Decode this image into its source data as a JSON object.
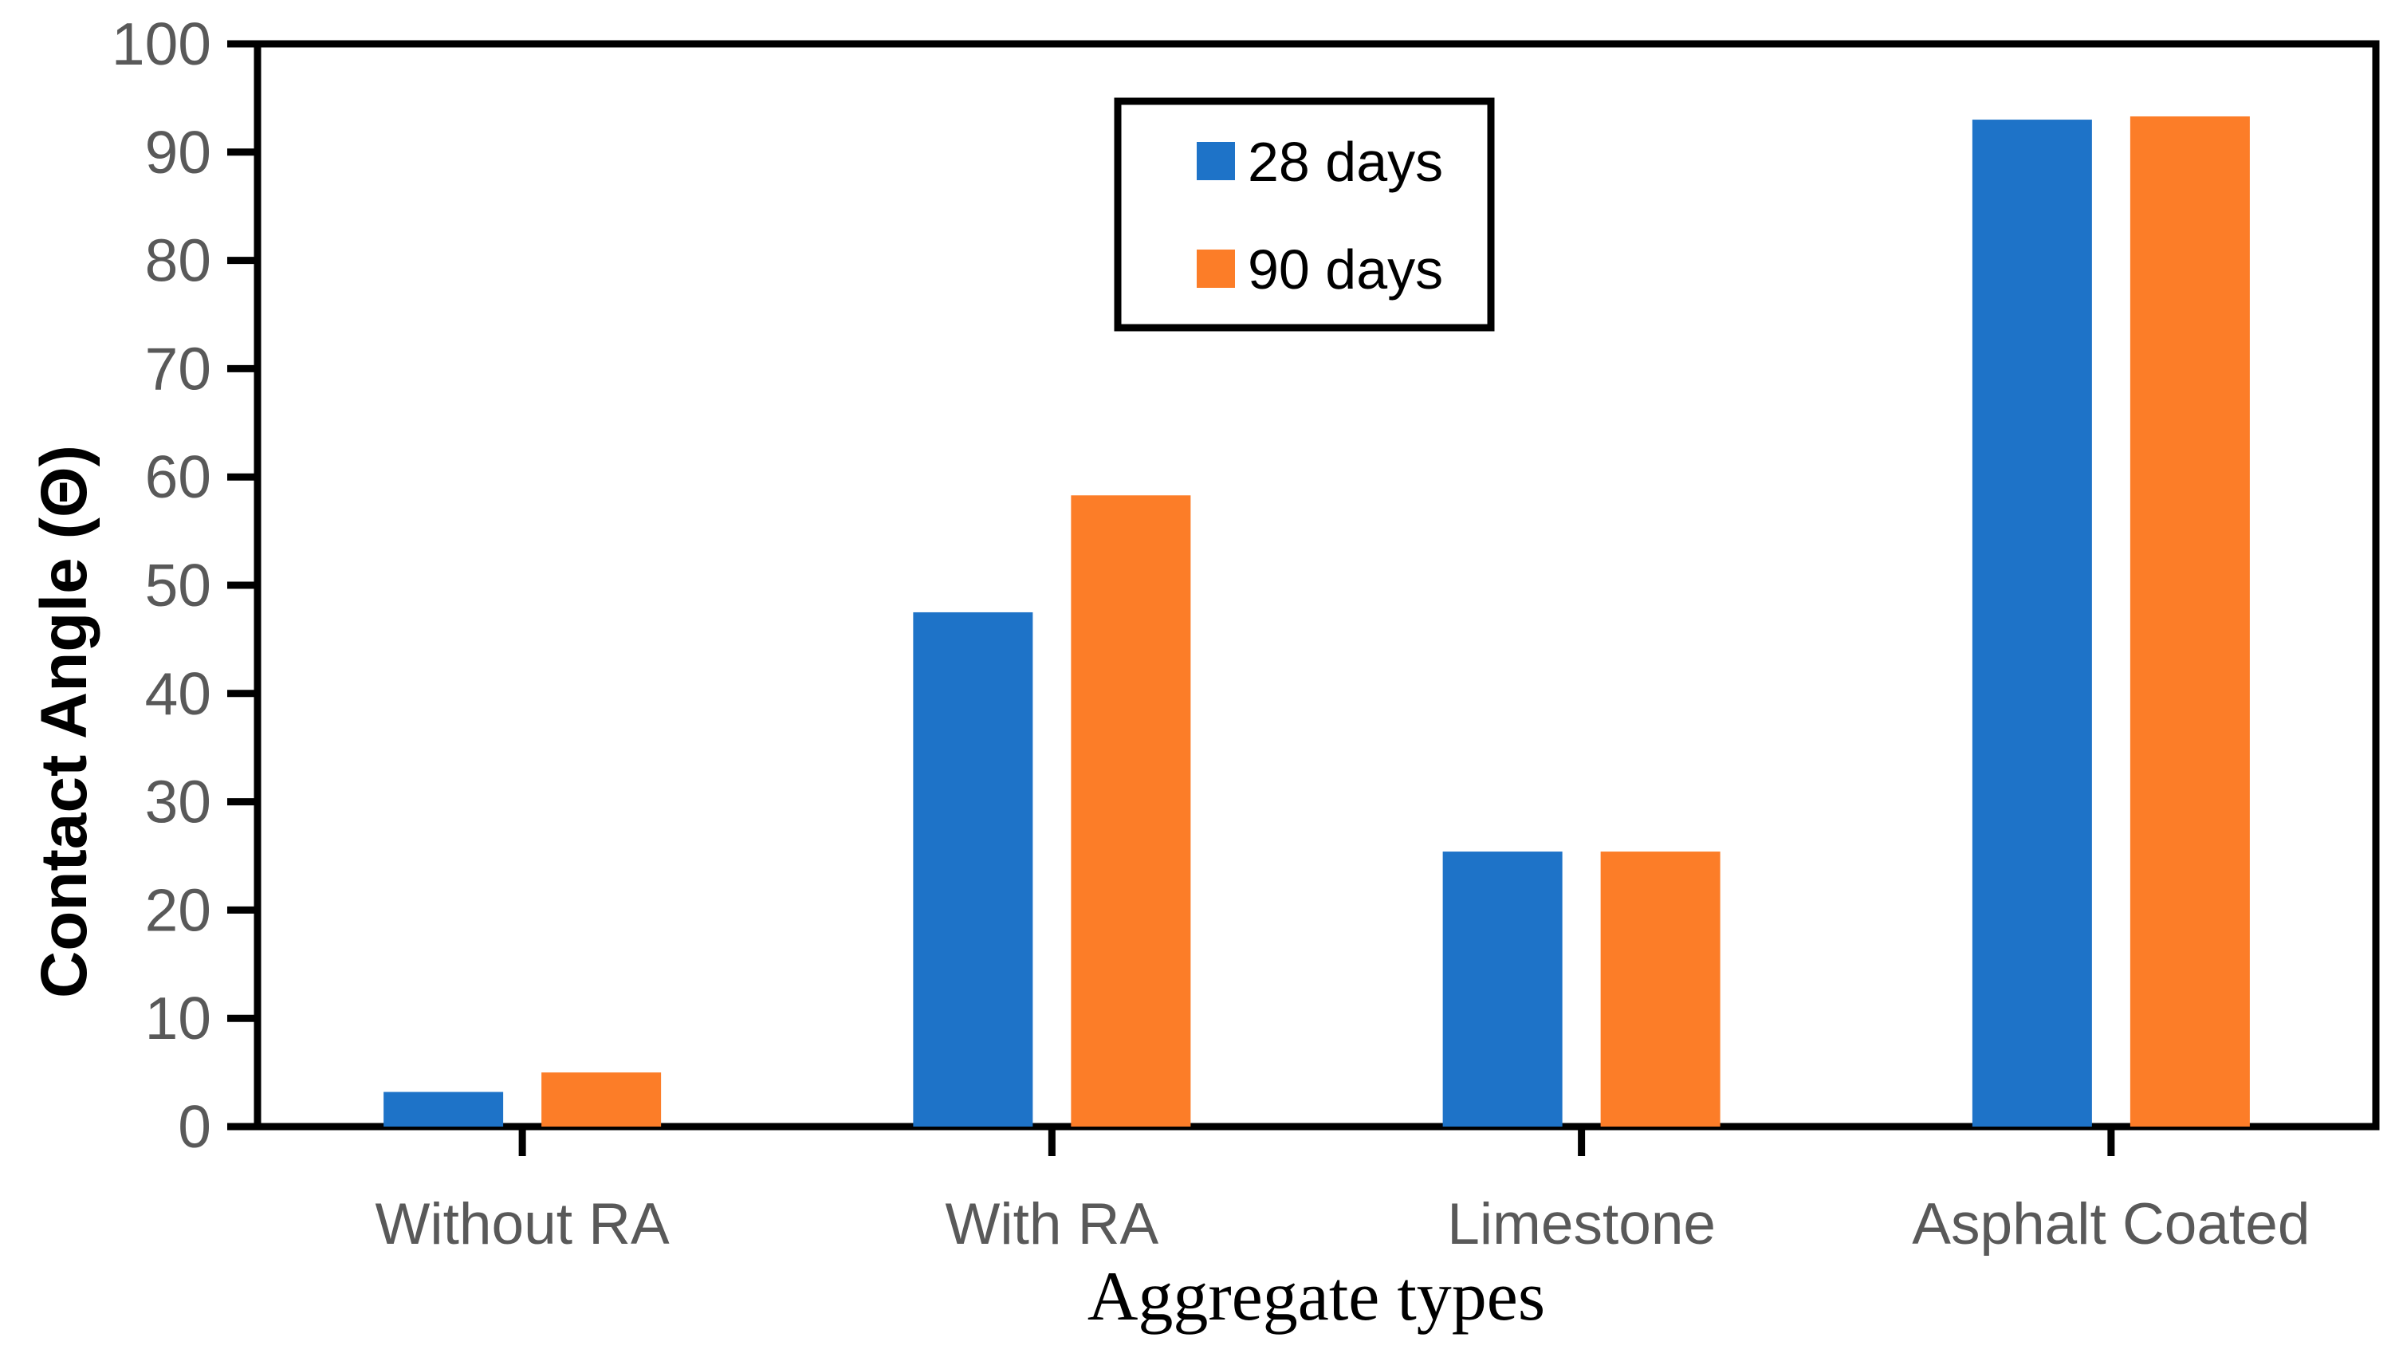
{
  "chart_data": {
    "type": "bar",
    "title": "",
    "xlabel": "Aggregate types",
    "ylabel": "Contact Angle (Θ)",
    "categories": [
      "Without RA",
      "With RA",
      "Limestone",
      "Asphalt Coated"
    ],
    "series": [
      {
        "name": "28 days",
        "color": "#1e73c8",
        "values": [
          3.2,
          47.5,
          25.4,
          93.0
        ]
      },
      {
        "name": "90 days",
        "color": "#fc7d28",
        "values": [
          5.0,
          58.3,
          25.4,
          93.3
        ]
      }
    ],
    "ylim": [
      0,
      100
    ],
    "yticks": [
      0,
      10,
      20,
      30,
      40,
      50,
      60,
      70,
      80,
      90,
      100
    ],
    "grid": false,
    "plot_border": true,
    "legend_position": "upper-center",
    "colors": {
      "axis": "#000000",
      "tick_label": "#595959",
      "category_label": "#595959",
      "legend_border": "#000000",
      "background": "#ffffff"
    }
  }
}
